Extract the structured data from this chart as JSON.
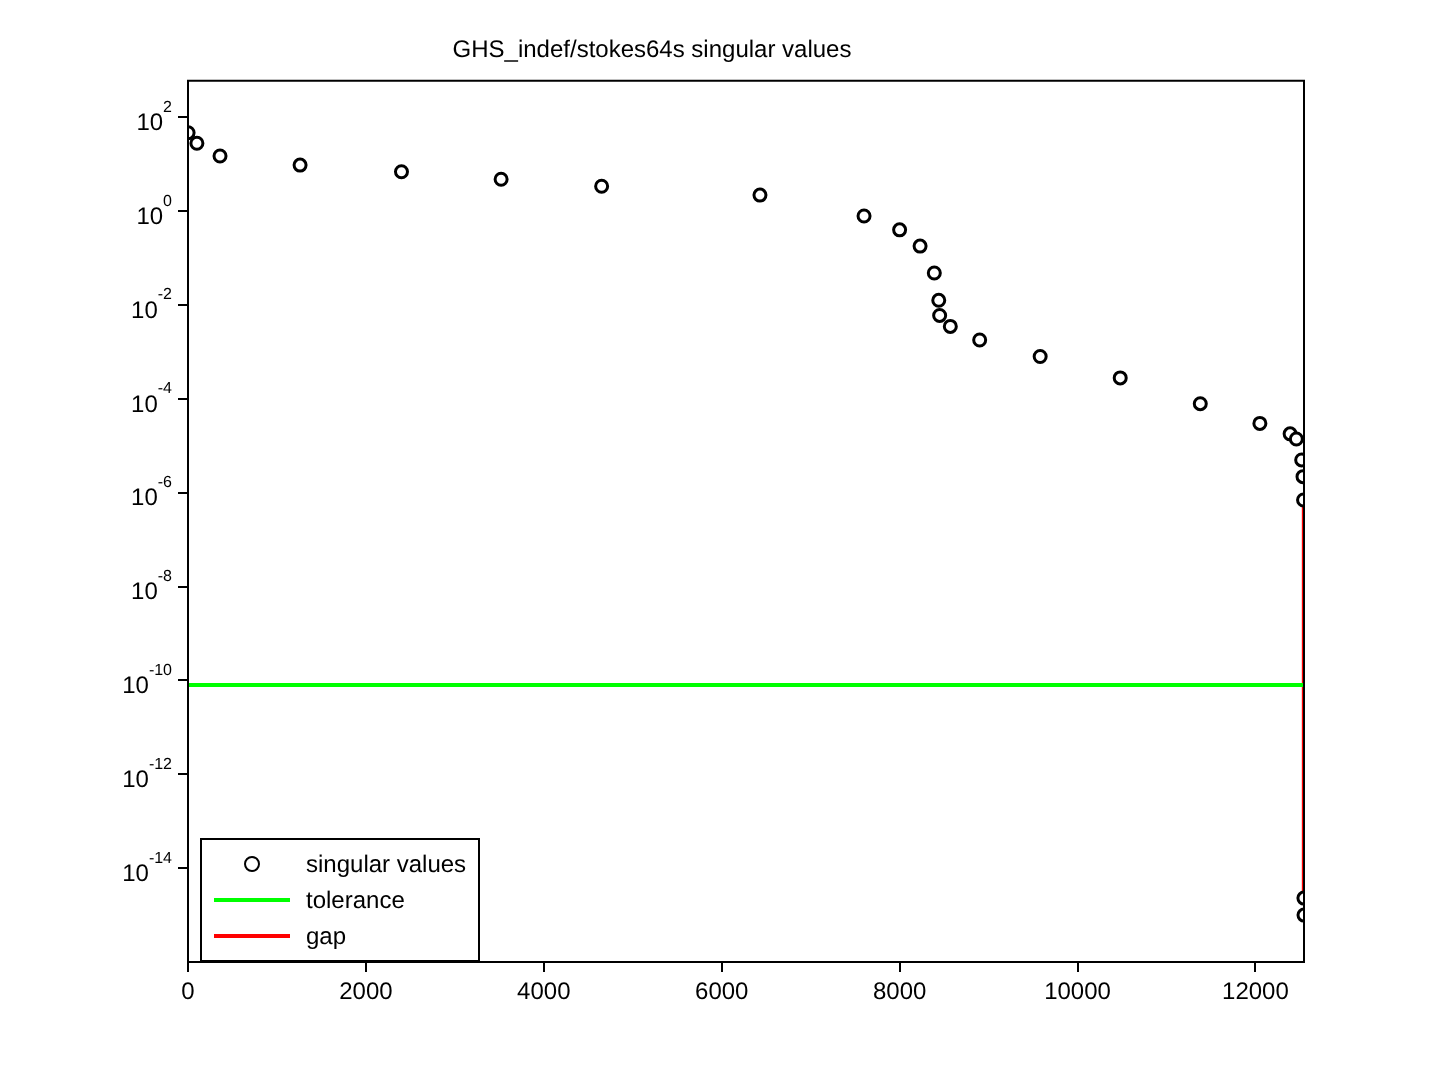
{
  "chart_data": {
    "type": "scatter",
    "title": "GHS_indef/stokes64s singular values",
    "log": "y",
    "grid": false,
    "legend": "bottom left",
    "xlim": [
      0,
      12546
    ],
    "xticks": [
      0,
      2000,
      4000,
      6000,
      8000,
      10000,
      12000
    ],
    "ylim": [
      1e-16,
      600
    ],
    "yticks": [
      {
        "value": 100,
        "label": "10$^{2}$"
      },
      {
        "value": 1,
        "label": "10$^{0}$"
      },
      {
        "value": 0.01,
        "label": "10$^{-2}$"
      },
      {
        "value": 0.0001,
        "label": "10$^{-4}$"
      },
      {
        "value": 1e-06,
        "label": "10$^{-6}$"
      },
      {
        "value": 1e-08,
        "label": "10$^{-8}$"
      },
      {
        "value": 1e-10,
        "label": "10$^{-10}$"
      },
      {
        "value": 1e-12,
        "label": "10$^{-12}$"
      },
      {
        "value": 1e-14,
        "label": "10$^{-14}$"
      }
    ],
    "series": [
      {
        "name": "singular values",
        "marker": "circle",
        "color": "#000000",
        "x": [
          1,
          100,
          360,
          1260,
          2400,
          3520,
          4650,
          6430,
          7600,
          8000,
          8230,
          8390,
          8440,
          8450,
          8570,
          8900,
          9580,
          10480,
          11380,
          12050,
          12390,
          12460,
          12520,
          12535,
          12541,
          12545,
          12546
        ],
        "values": [
          47,
          28,
          15,
          9.6,
          6.9,
          4.8,
          3.4,
          2.2,
          0.79,
          0.4,
          0.18,
          0.048,
          0.0126,
          0.006,
          0.0035,
          0.0018,
          0.0008,
          0.00028,
          7.9e-05,
          3e-05,
          1.8e-05,
          1.4e-05,
          5e-06,
          2.2e-06,
          7e-07,
          2.3e-15,
          1e-15
        ]
      },
      {
        "name": "tolerance",
        "type": "line",
        "marker": "none",
        "color": "#00ff00",
        "x": [
          0,
          12546
        ],
        "values": [
          8e-11,
          8e-11
        ]
      },
      {
        "name": "gap",
        "type": "line",
        "marker": "none",
        "color": "#ff0000",
        "x": [
          12544,
          12544
        ],
        "values": [
          7e-07,
          2.3e-15
        ]
      }
    ]
  }
}
